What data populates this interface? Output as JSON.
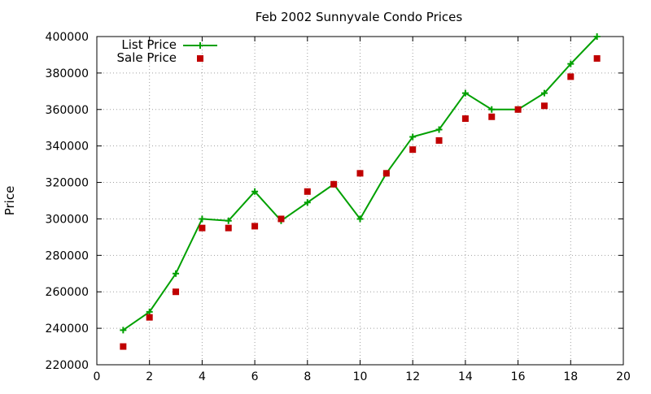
{
  "chart_data": {
    "type": "line",
    "title": "Feb 2002 Sunnyvale Condo Prices",
    "xlabel": "",
    "ylabel": "Price",
    "xlim": [
      0,
      20
    ],
    "ylim": [
      220000,
      400000
    ],
    "x_ticks": [
      "0",
      "2",
      "4",
      "6",
      "8",
      "10",
      "12",
      "14",
      "16",
      "18",
      "20"
    ],
    "y_ticks": [
      "220000",
      "240000",
      "260000",
      "280000",
      "300000",
      "320000",
      "340000",
      "360000",
      "380000",
      "400000"
    ],
    "grid": true,
    "legend_position": "top-left",
    "x": [
      1,
      2,
      3,
      4,
      5,
      6,
      7,
      8,
      9,
      10,
      11,
      12,
      13,
      14,
      15,
      16,
      17,
      18,
      19
    ],
    "series": [
      {
        "name": "List Price",
        "style": "line+cross",
        "color": "#00a000",
        "values": [
          239000,
          249000,
          270000,
          300000,
          299000,
          315000,
          299000,
          309000,
          319000,
          300000,
          325000,
          345000,
          349000,
          369000,
          360000,
          360000,
          369000,
          385000,
          400000
        ]
      },
      {
        "name": "Sale Price",
        "style": "square-points",
        "color": "#c00000",
        "values": [
          230000,
          246000,
          260000,
          295000,
          295000,
          296000,
          300000,
          315000,
          319000,
          325000,
          325000,
          338000,
          343000,
          355000,
          356000,
          360000,
          362000,
          378000,
          388000
        ]
      }
    ]
  }
}
